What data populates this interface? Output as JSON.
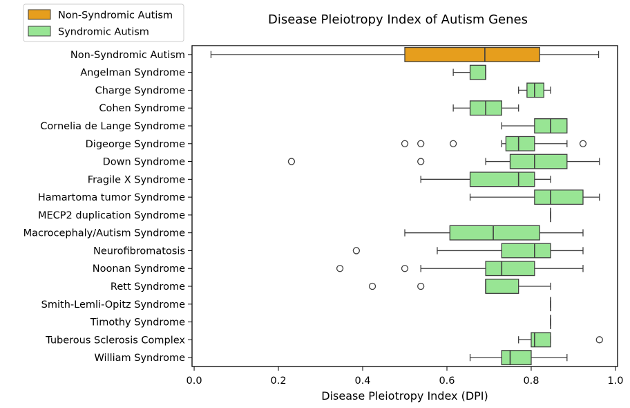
{
  "chart_data": {
    "type": "boxplot",
    "orientation": "horizontal",
    "title": "Disease Pleiotropy Index of Autism Genes",
    "xlabel": "Disease Pleiotropy Index (DPI)",
    "ylabel": "",
    "xlim": [
      -0.005,
      1.005
    ],
    "xticks": [
      0.0,
      0.2,
      0.4,
      0.6,
      0.8,
      1.0
    ],
    "xtick_labels": [
      "0.0",
      "0.2",
      "0.4",
      "0.6",
      "0.8",
      "1.0"
    ],
    "grid": false,
    "legend_position": "upper-left-outside",
    "legend": [
      {
        "name": "Non-Syndromic Autism",
        "color": "#e69e1d"
      },
      {
        "name": "Syndromic Autism",
        "color": "#98e594"
      }
    ],
    "categories": [
      "Non-Syndromic Autism",
      "Angelman Syndrome",
      "Charge Syndrome",
      "Cohen Syndrome",
      "Cornelia de Lange Syndrome",
      "Digeorge Syndrome",
      "Down Syndrome",
      "Fragile X Syndrome",
      "Hamartoma tumor Syndrome",
      "MECP2 duplication Syndrome",
      "Macrocephaly/Autism Syndrome ",
      "Neurofibromatosis",
      "Noonan Syndrome",
      "Rett Syndrome",
      "Smith-Lemli-Opitz Syndrome",
      "Timothy Syndrome",
      "Tuberous Sclerosis Complex",
      "William Syndrome"
    ],
    "series": [
      {
        "name": "Non-Syndromic Autism",
        "color": "#e69e1d",
        "boxes": [
          {
            "category": "Non-Syndromic Autism",
            "whislo": 0.04,
            "q1": 0.5,
            "med": 0.69,
            "q3": 0.82,
            "whishi": 0.96,
            "fliers": []
          }
        ]
      },
      {
        "name": "Syndromic Autism",
        "color": "#98e594",
        "boxes": [
          {
            "category": "Angelman Syndrome",
            "whislo": 0.615,
            "q1": 0.655,
            "med": 0.692,
            "q3": 0.692,
            "whishi": 0.692,
            "fliers": []
          },
          {
            "category": "Charge Syndrome",
            "whislo": 0.77,
            "q1": 0.79,
            "med": 0.808,
            "q3": 0.83,
            "whishi": 0.846,
            "fliers": []
          },
          {
            "category": "Cohen Syndrome",
            "whislo": 0.615,
            "q1": 0.655,
            "med": 0.692,
            "q3": 0.73,
            "whishi": 0.77,
            "fliers": []
          },
          {
            "category": "Cornelia de Lange Syndrome",
            "whislo": 0.73,
            "q1": 0.808,
            "med": 0.846,
            "q3": 0.885,
            "whishi": 0.885,
            "fliers": []
          },
          {
            "category": "Digeorge Syndrome",
            "whislo": 0.73,
            "q1": 0.74,
            "med": 0.77,
            "q3": 0.808,
            "whishi": 0.885,
            "fliers": [
              0.5,
              0.538,
              0.615,
              0.923
            ]
          },
          {
            "category": "Down Syndrome",
            "whislo": 0.692,
            "q1": 0.75,
            "med": 0.808,
            "q3": 0.885,
            "whishi": 0.962,
            "fliers": [
              0.231,
              0.538
            ]
          },
          {
            "category": "Fragile X Syndrome",
            "whislo": 0.538,
            "q1": 0.655,
            "med": 0.77,
            "q3": 0.808,
            "whishi": 0.846,
            "fliers": []
          },
          {
            "category": "Hamartoma tumor Syndrome",
            "whislo": 0.655,
            "q1": 0.808,
            "med": 0.846,
            "q3": 0.923,
            "whishi": 0.962,
            "fliers": []
          },
          {
            "category": "MECP2 duplication Syndrome",
            "whislo": 0.846,
            "q1": 0.846,
            "med": 0.846,
            "q3": 0.846,
            "whishi": 0.846,
            "fliers": []
          },
          {
            "category": "Macrocephaly/Autism Syndrome ",
            "whislo": 0.5,
            "q1": 0.607,
            "med": 0.71,
            "q3": 0.82,
            "whishi": 0.923,
            "fliers": []
          },
          {
            "category": "Neurofibromatosis",
            "whislo": 0.577,
            "q1": 0.73,
            "med": 0.808,
            "q3": 0.846,
            "whishi": 0.923,
            "fliers": [
              0.385
            ]
          },
          {
            "category": "Noonan Syndrome",
            "whislo": 0.538,
            "q1": 0.692,
            "med": 0.73,
            "q3": 0.808,
            "whishi": 0.923,
            "fliers": [
              0.346,
              0.5
            ]
          },
          {
            "category": "Rett Syndrome",
            "whislo": 0.692,
            "q1": 0.692,
            "med": 0.692,
            "q3": 0.77,
            "whishi": 0.846,
            "fliers": [
              0.423,
              0.538
            ]
          },
          {
            "category": "Smith-Lemli-Opitz Syndrome",
            "whislo": 0.846,
            "q1": 0.846,
            "med": 0.846,
            "q3": 0.846,
            "whishi": 0.846,
            "fliers": []
          },
          {
            "category": "Timothy Syndrome",
            "whislo": 0.846,
            "q1": 0.846,
            "med": 0.846,
            "q3": 0.846,
            "whishi": 0.846,
            "fliers": []
          },
          {
            "category": "Tuberous Sclerosis Complex",
            "whislo": 0.77,
            "q1": 0.8,
            "med": 0.808,
            "q3": 0.846,
            "whishi": 0.846,
            "fliers": [
              0.962
            ]
          },
          {
            "category": "William Syndrome",
            "whislo": 0.655,
            "q1": 0.73,
            "med": 0.75,
            "q3": 0.8,
            "whishi": 0.885,
            "fliers": []
          }
        ]
      }
    ]
  }
}
